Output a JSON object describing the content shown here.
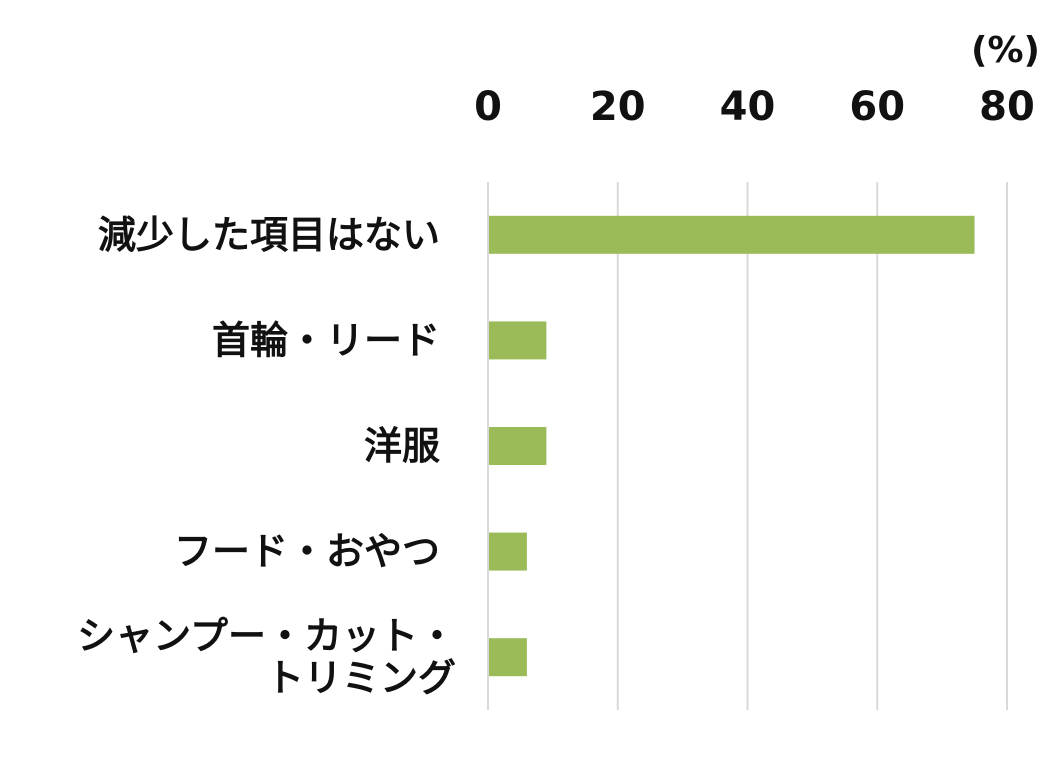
{
  "chart_data": {
    "type": "bar",
    "orientation": "horizontal",
    "unit_label": "(%)",
    "categories": [
      [
        "減少した項目はない"
      ],
      [
        "首輪・リード"
      ],
      [
        "洋服"
      ],
      [
        "フード・おやつ"
      ],
      [
        "シャンプー・カット・",
        "トリミング"
      ]
    ],
    "values": [
      75,
      9,
      9,
      6,
      6
    ],
    "xlim": [
      0,
      80
    ],
    "ticks": [
      "0",
      "20",
      "40",
      "60",
      "80"
    ],
    "bar_color": "#9bbb59",
    "grid": true,
    "tick_position": "top",
    "title": "",
    "xlabel": "",
    "ylabel": ""
  }
}
